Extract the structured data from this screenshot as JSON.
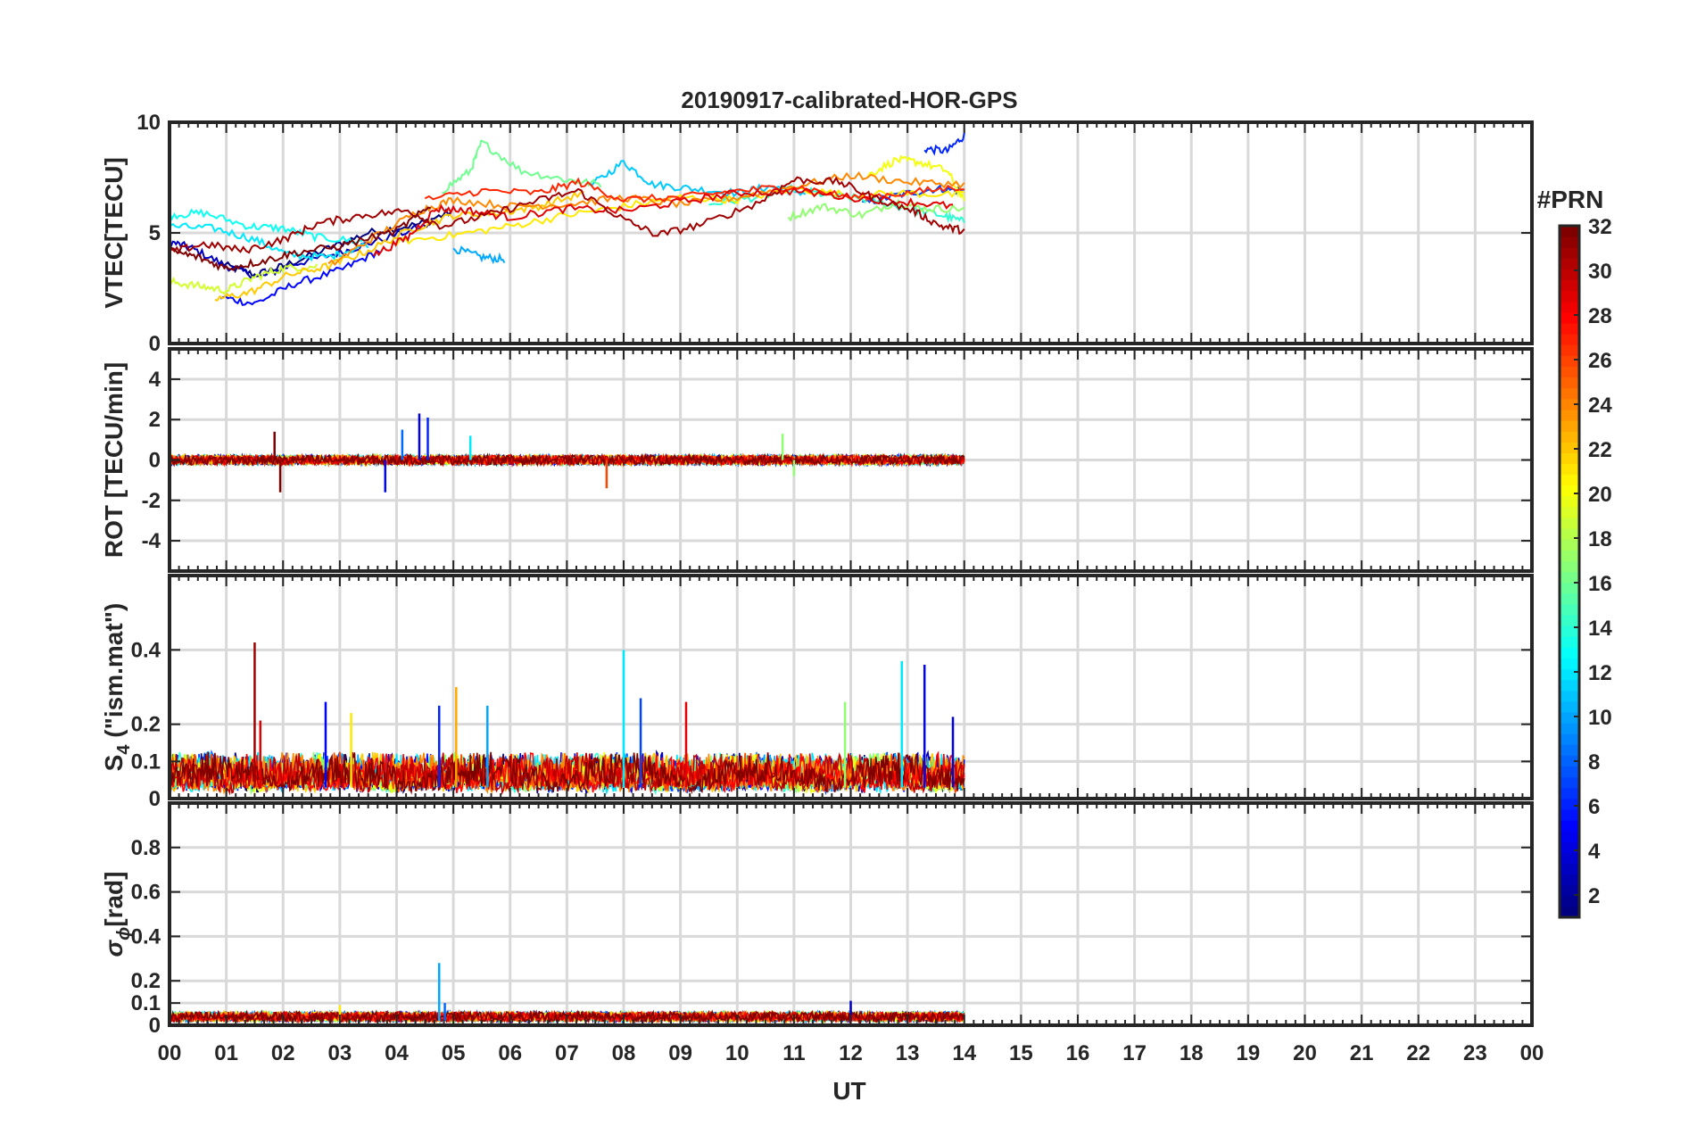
{
  "figure": {
    "title": "20190917-calibrated-HOR-GPS",
    "xlabel": "UT",
    "x_ticks": [
      "00",
      "01",
      "02",
      "03",
      "04",
      "05",
      "06",
      "07",
      "08",
      "09",
      "10",
      "11",
      "12",
      "13",
      "14",
      "15",
      "16",
      "17",
      "18",
      "19",
      "20",
      "21",
      "22",
      "23",
      "00"
    ],
    "colorbar": {
      "label": "#PRN",
      "ticks": [
        "2",
        "4",
        "6",
        "8",
        "10",
        "12",
        "14",
        "16",
        "18",
        "20",
        "22",
        "24",
        "26",
        "28",
        "30",
        "32"
      ],
      "range": [
        1,
        32
      ],
      "colormap": "jet"
    }
  },
  "chart_data": [
    {
      "type": "line",
      "panel": "vtec",
      "ylabel": "VTEC[TECU]",
      "ylabel_sub": "",
      "ylabel_tail": "",
      "xlim": [
        0,
        24
      ],
      "ylim": [
        0,
        10
      ],
      "yticks": [
        0,
        5,
        10
      ],
      "ytick_labels": [
        "0",
        "5",
        "10"
      ],
      "grid": true,
      "series": [
        {
          "prn": 1,
          "x": [
            0.9,
            1.5,
            2.0,
            2.8,
            3.5,
            4.4,
            5.0
          ],
          "y": [
            3.6,
            3.1,
            3.5,
            4.3,
            5.0,
            5.4,
            6.0
          ]
        },
        {
          "prn": 3,
          "x": [
            0.0,
            0.4,
            1.0,
            1.6,
            2.2,
            3.0,
            3.6,
            4.6
          ],
          "y": [
            4.6,
            4.3,
            3.5,
            3.0,
            3.6,
            4.1,
            4.6,
            5.4
          ]
        },
        {
          "prn": 5,
          "x": [
            0.9,
            1.5,
            2.2,
            3.0,
            3.7
          ],
          "y": [
            2.1,
            1.8,
            2.7,
            3.3,
            4.2
          ]
        },
        {
          "prn": 7,
          "x": [
            12.2,
            12.8,
            13.5,
            14.0
          ],
          "y": [
            6.3,
            6.7,
            7.0,
            6.9
          ]
        },
        {
          "prn": 6,
          "x": [
            13.3,
            13.7,
            14.0
          ],
          "y": [
            8.8,
            8.7,
            9.4
          ]
        },
        {
          "prn": 10,
          "x": [
            5.0,
            5.5,
            5.9
          ],
          "y": [
            4.3,
            3.9,
            3.8
          ]
        },
        {
          "prn": 11,
          "x": [
            7.4,
            8.0,
            8.5,
            9.2,
            10.0,
            10.6,
            11.2
          ],
          "y": [
            7.1,
            8.2,
            7.2,
            7.0,
            6.8,
            7.1,
            6.8
          ]
        },
        {
          "prn": 12,
          "x": [
            0.0,
            0.8,
            1.5,
            2.1,
            2.8,
            3.5
          ],
          "y": [
            5.3,
            5.2,
            4.7,
            4.0,
            3.9,
            4.5
          ]
        },
        {
          "prn": 13,
          "x": [
            0.0,
            0.6,
            1.4,
            2.0,
            2.6,
            3.4
          ],
          "y": [
            5.8,
            5.9,
            5.3,
            5.2,
            4.8,
            4.6
          ]
        },
        {
          "prn": 14,
          "x": [
            9.5,
            10.3,
            11.0,
            11.6,
            12.3,
            13.0,
            13.6,
            14.0
          ],
          "y": [
            6.3,
            6.6,
            7.0,
            6.7,
            6.5,
            6.1,
            5.8,
            5.5
          ]
        },
        {
          "prn": 16,
          "x": [
            4.8,
            5.3,
            5.5,
            6.2,
            7.0,
            7.6
          ],
          "y": [
            6.9,
            7.8,
            9.1,
            7.8,
            7.4,
            7.2
          ]
        },
        {
          "prn": 17,
          "x": [
            10.9,
            11.5,
            12.2,
            12.8,
            13.3,
            14.0
          ],
          "y": [
            5.7,
            6.2,
            5.8,
            6.4,
            6.1,
            6.1
          ]
        },
        {
          "prn": 19,
          "x": [
            0.0,
            0.5,
            1.0,
            1.5,
            2.0,
            2.6
          ],
          "y": [
            2.8,
            2.6,
            2.4,
            3.0,
            3.4,
            3.5
          ]
        },
        {
          "prn": 20,
          "x": [
            12.3,
            12.8,
            13.2,
            13.7,
            14.0
          ],
          "y": [
            7.6,
            8.3,
            8.2,
            7.8,
            6.4
          ]
        },
        {
          "prn": 21,
          "x": [
            4.0,
            5.0,
            6.0,
            7.0,
            8.0,
            9.0,
            10.0,
            11.0,
            12.0,
            13.0,
            14.0
          ],
          "y": [
            4.6,
            4.9,
            5.3,
            5.8,
            6.2,
            6.6,
            6.5,
            7.0,
            6.7,
            6.8,
            6.7
          ]
        },
        {
          "prn": 22,
          "x": [
            0.8,
            1.4,
            2.1,
            2.8,
            3.5,
            4.3,
            5.0,
            5.8,
            6.5,
            7.3
          ],
          "y": [
            2.0,
            2.3,
            3.1,
            3.5,
            4.2,
            5.2,
            5.8,
            5.9,
            6.2,
            6.8
          ]
        },
        {
          "prn": 24,
          "x": [
            2.8,
            3.6,
            4.4,
            5.0,
            6.0,
            7.0,
            8.0,
            9.0,
            10.0,
            11.0,
            12.0,
            13.0,
            14.0
          ],
          "y": [
            3.5,
            4.8,
            6.0,
            6.5,
            6.2,
            6.3,
            6.6,
            6.3,
            6.6,
            7.1,
            7.6,
            7.3,
            7.2
          ]
        },
        {
          "prn": 27,
          "x": [
            4.5,
            5.5,
            6.5,
            7.2,
            8.0,
            9.0,
            10.0,
            11.0,
            12.0,
            13.0,
            14.0
          ],
          "y": [
            6.5,
            6.9,
            6.8,
            7.3,
            6.5,
            6.6,
            6.9,
            7.1,
            6.6,
            6.8,
            7.1
          ]
        },
        {
          "prn": 29,
          "x": [
            3.6,
            4.2,
            4.7,
            5.3,
            6.0,
            7.0,
            8.0,
            9.0,
            10.0,
            11.0,
            12.0,
            13.0,
            13.8
          ],
          "y": [
            4.0,
            4.8,
            6.1,
            6.0,
            5.7,
            6.1,
            6.0,
            6.4,
            6.8,
            6.9,
            6.6,
            6.4,
            6.2
          ]
        },
        {
          "prn": 31,
          "x": [
            0.0,
            0.6,
            1.3,
            2.0,
            2.6,
            3.4,
            4.2,
            4.8,
            5.6,
            6.4,
            7.2,
            8.0,
            8.6,
            9.4,
            10.4,
            11.0,
            11.8,
            12.4,
            13.1,
            13.6,
            14.0
          ],
          "y": [
            4.1,
            4.5,
            4.2,
            4.7,
            5.4,
            5.8,
            6.0,
            5.3,
            5.8,
            6.4,
            6.9,
            5.6,
            4.9,
            5.4,
            6.4,
            7.4,
            7.3,
            6.6,
            6.0,
            5.3,
            5.1
          ]
        },
        {
          "prn": 32,
          "x": [
            0.0,
            0.5,
            1.0,
            1.6,
            2.2,
            3.0,
            4.0,
            4.6
          ],
          "y": [
            4.2,
            3.9,
            3.4,
            3.7,
            4.1,
            4.4,
            5.1,
            6.2
          ]
        }
      ]
    },
    {
      "type": "line",
      "panel": "rot",
      "ylabel": "ROT [TECU/min]",
      "ylabel_sub": "",
      "ylabel_tail": "",
      "xlim": [
        0,
        24
      ],
      "ylim": [
        -5.5,
        5.5
      ],
      "yticks": [
        -4,
        -2,
        0,
        2,
        4
      ],
      "ytick_labels": [
        "-4",
        "-2",
        "0",
        "2",
        "4"
      ],
      "grid": true,
      "description_values": {
        "typical_amplitude": 0.4,
        "max_spike": 2.3,
        "min_spike": -1.6
      },
      "spikes": [
        {
          "prn": 32,
          "x": 1.95,
          "y": -1.6
        },
        {
          "prn": 32,
          "x": 1.85,
          "y": 1.4
        },
        {
          "prn": 4,
          "x": 4.4,
          "y": 2.3
        },
        {
          "prn": 6,
          "x": 4.55,
          "y": 2.1
        },
        {
          "prn": 5,
          "x": 3.8,
          "y": -1.6
        },
        {
          "prn": 8,
          "x": 4.1,
          "y": 1.5
        },
        {
          "prn": 12,
          "x": 5.3,
          "y": 1.2
        },
        {
          "prn": 26,
          "x": 7.7,
          "y": -1.4
        },
        {
          "prn": 17,
          "x": 10.8,
          "y": 1.3
        },
        {
          "prn": 17,
          "x": 11.0,
          "y": -0.8
        }
      ]
    },
    {
      "type": "line",
      "panel": "s4",
      "ylabel": "S",
      "ylabel_sub": "4",
      "ylabel_tail": " (\"ism.mat\")",
      "xlim": [
        0,
        24
      ],
      "ylim": [
        0,
        0.6
      ],
      "yticks": [
        0,
        0.1,
        0.2,
        0.4
      ],
      "ytick_labels": [
        "0",
        "0.1",
        "0.2",
        "0.4"
      ],
      "grid": true,
      "description_values": {
        "typical_level": 0.06
      },
      "peaks": [
        {
          "prn": 31,
          "x": 1.5,
          "y": 0.42
        },
        {
          "prn": 29,
          "x": 1.6,
          "y": 0.21
        },
        {
          "prn": 5,
          "x": 2.75,
          "y": 0.26
        },
        {
          "prn": 21,
          "x": 3.2,
          "y": 0.23
        },
        {
          "prn": 6,
          "x": 4.75,
          "y": 0.25
        },
        {
          "prn": 23,
          "x": 5.05,
          "y": 0.3
        },
        {
          "prn": 10,
          "x": 5.6,
          "y": 0.25
        },
        {
          "prn": 12,
          "x": 8.0,
          "y": 0.4
        },
        {
          "prn": 7,
          "x": 8.3,
          "y": 0.27
        },
        {
          "prn": 29,
          "x": 9.1,
          "y": 0.26
        },
        {
          "prn": 17,
          "x": 11.9,
          "y": 0.26
        },
        {
          "prn": 12,
          "x": 12.9,
          "y": 0.37
        },
        {
          "prn": 5,
          "x": 13.3,
          "y": 0.36
        },
        {
          "prn": 4,
          "x": 13.8,
          "y": 0.22
        }
      ]
    },
    {
      "type": "line",
      "panel": "sigma_phi",
      "ylabel": "σ",
      "ylabel_sub": "ϕ",
      "ylabel_tail": "[rad]",
      "xlim": [
        0,
        24
      ],
      "ylim": [
        0,
        1
      ],
      "yticks": [
        0,
        0.1,
        0.2,
        0.4,
        0.6,
        0.8
      ],
      "ytick_labels": [
        "0",
        "0.1",
        "0.2",
        "0.4",
        "0.6",
        "0.8"
      ],
      "grid": true,
      "description_values": {
        "typical_level": 0.04
      },
      "peaks": [
        {
          "prn": 10,
          "x": 4.75,
          "y": 0.28
        },
        {
          "prn": 8,
          "x": 4.85,
          "y": 0.1
        },
        {
          "prn": 3,
          "x": 12.0,
          "y": 0.11
        },
        {
          "prn": 21,
          "x": 3.0,
          "y": 0.09
        }
      ]
    }
  ]
}
